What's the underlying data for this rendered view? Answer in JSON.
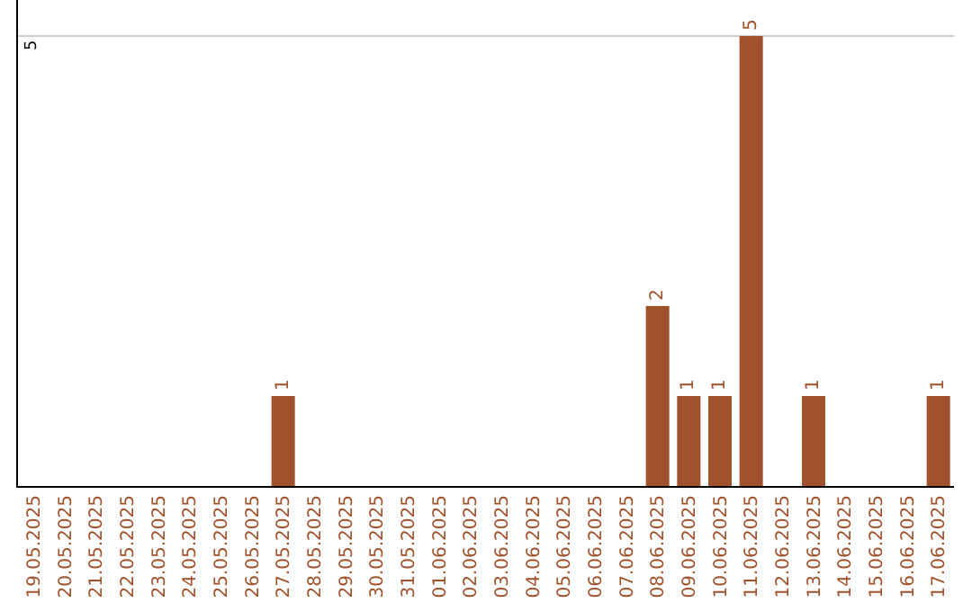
{
  "chart_data": {
    "type": "bar",
    "categories": [
      "19.05.2025",
      "20.05.2025",
      "21.05.2025",
      "22.05.2025",
      "23.05.2025",
      "24.05.2025",
      "25.05.2025",
      "26.05.2025",
      "27.05.2025",
      "28.05.2025",
      "29.05.2025",
      "30.05.2025",
      "31.05.2025",
      "01.06.2025",
      "02.06.2025",
      "03.06.2025",
      "04.06.2025",
      "05.06.2025",
      "06.06.2025",
      "07.06.2025",
      "08.06.2025",
      "09.06.2025",
      "10.06.2025",
      "11.06.2025",
      "12.06.2025",
      "13.06.2025",
      "14.06.2025",
      "15.06.2025",
      "16.06.2025",
      "17.06.2025"
    ],
    "values": [
      0,
      0,
      0,
      0,
      0,
      0,
      0,
      0,
      1,
      0,
      0,
      0,
      0,
      0,
      0,
      0,
      0,
      0,
      0,
      0,
      2,
      1,
      1,
      5,
      0,
      1,
      0,
      0,
      0,
      1
    ],
    "value_labels": [
      null,
      null,
      null,
      null,
      null,
      null,
      null,
      null,
      "1",
      null,
      null,
      null,
      null,
      null,
      null,
      null,
      null,
      null,
      null,
      null,
      "2",
      "1",
      "1",
      "5",
      null,
      "1",
      null,
      null,
      null,
      "1"
    ],
    "color": "#a0522d",
    "ylim": [
      0,
      5.4
    ],
    "yticks": [
      5
    ],
    "grid": "y",
    "legend": false
  }
}
